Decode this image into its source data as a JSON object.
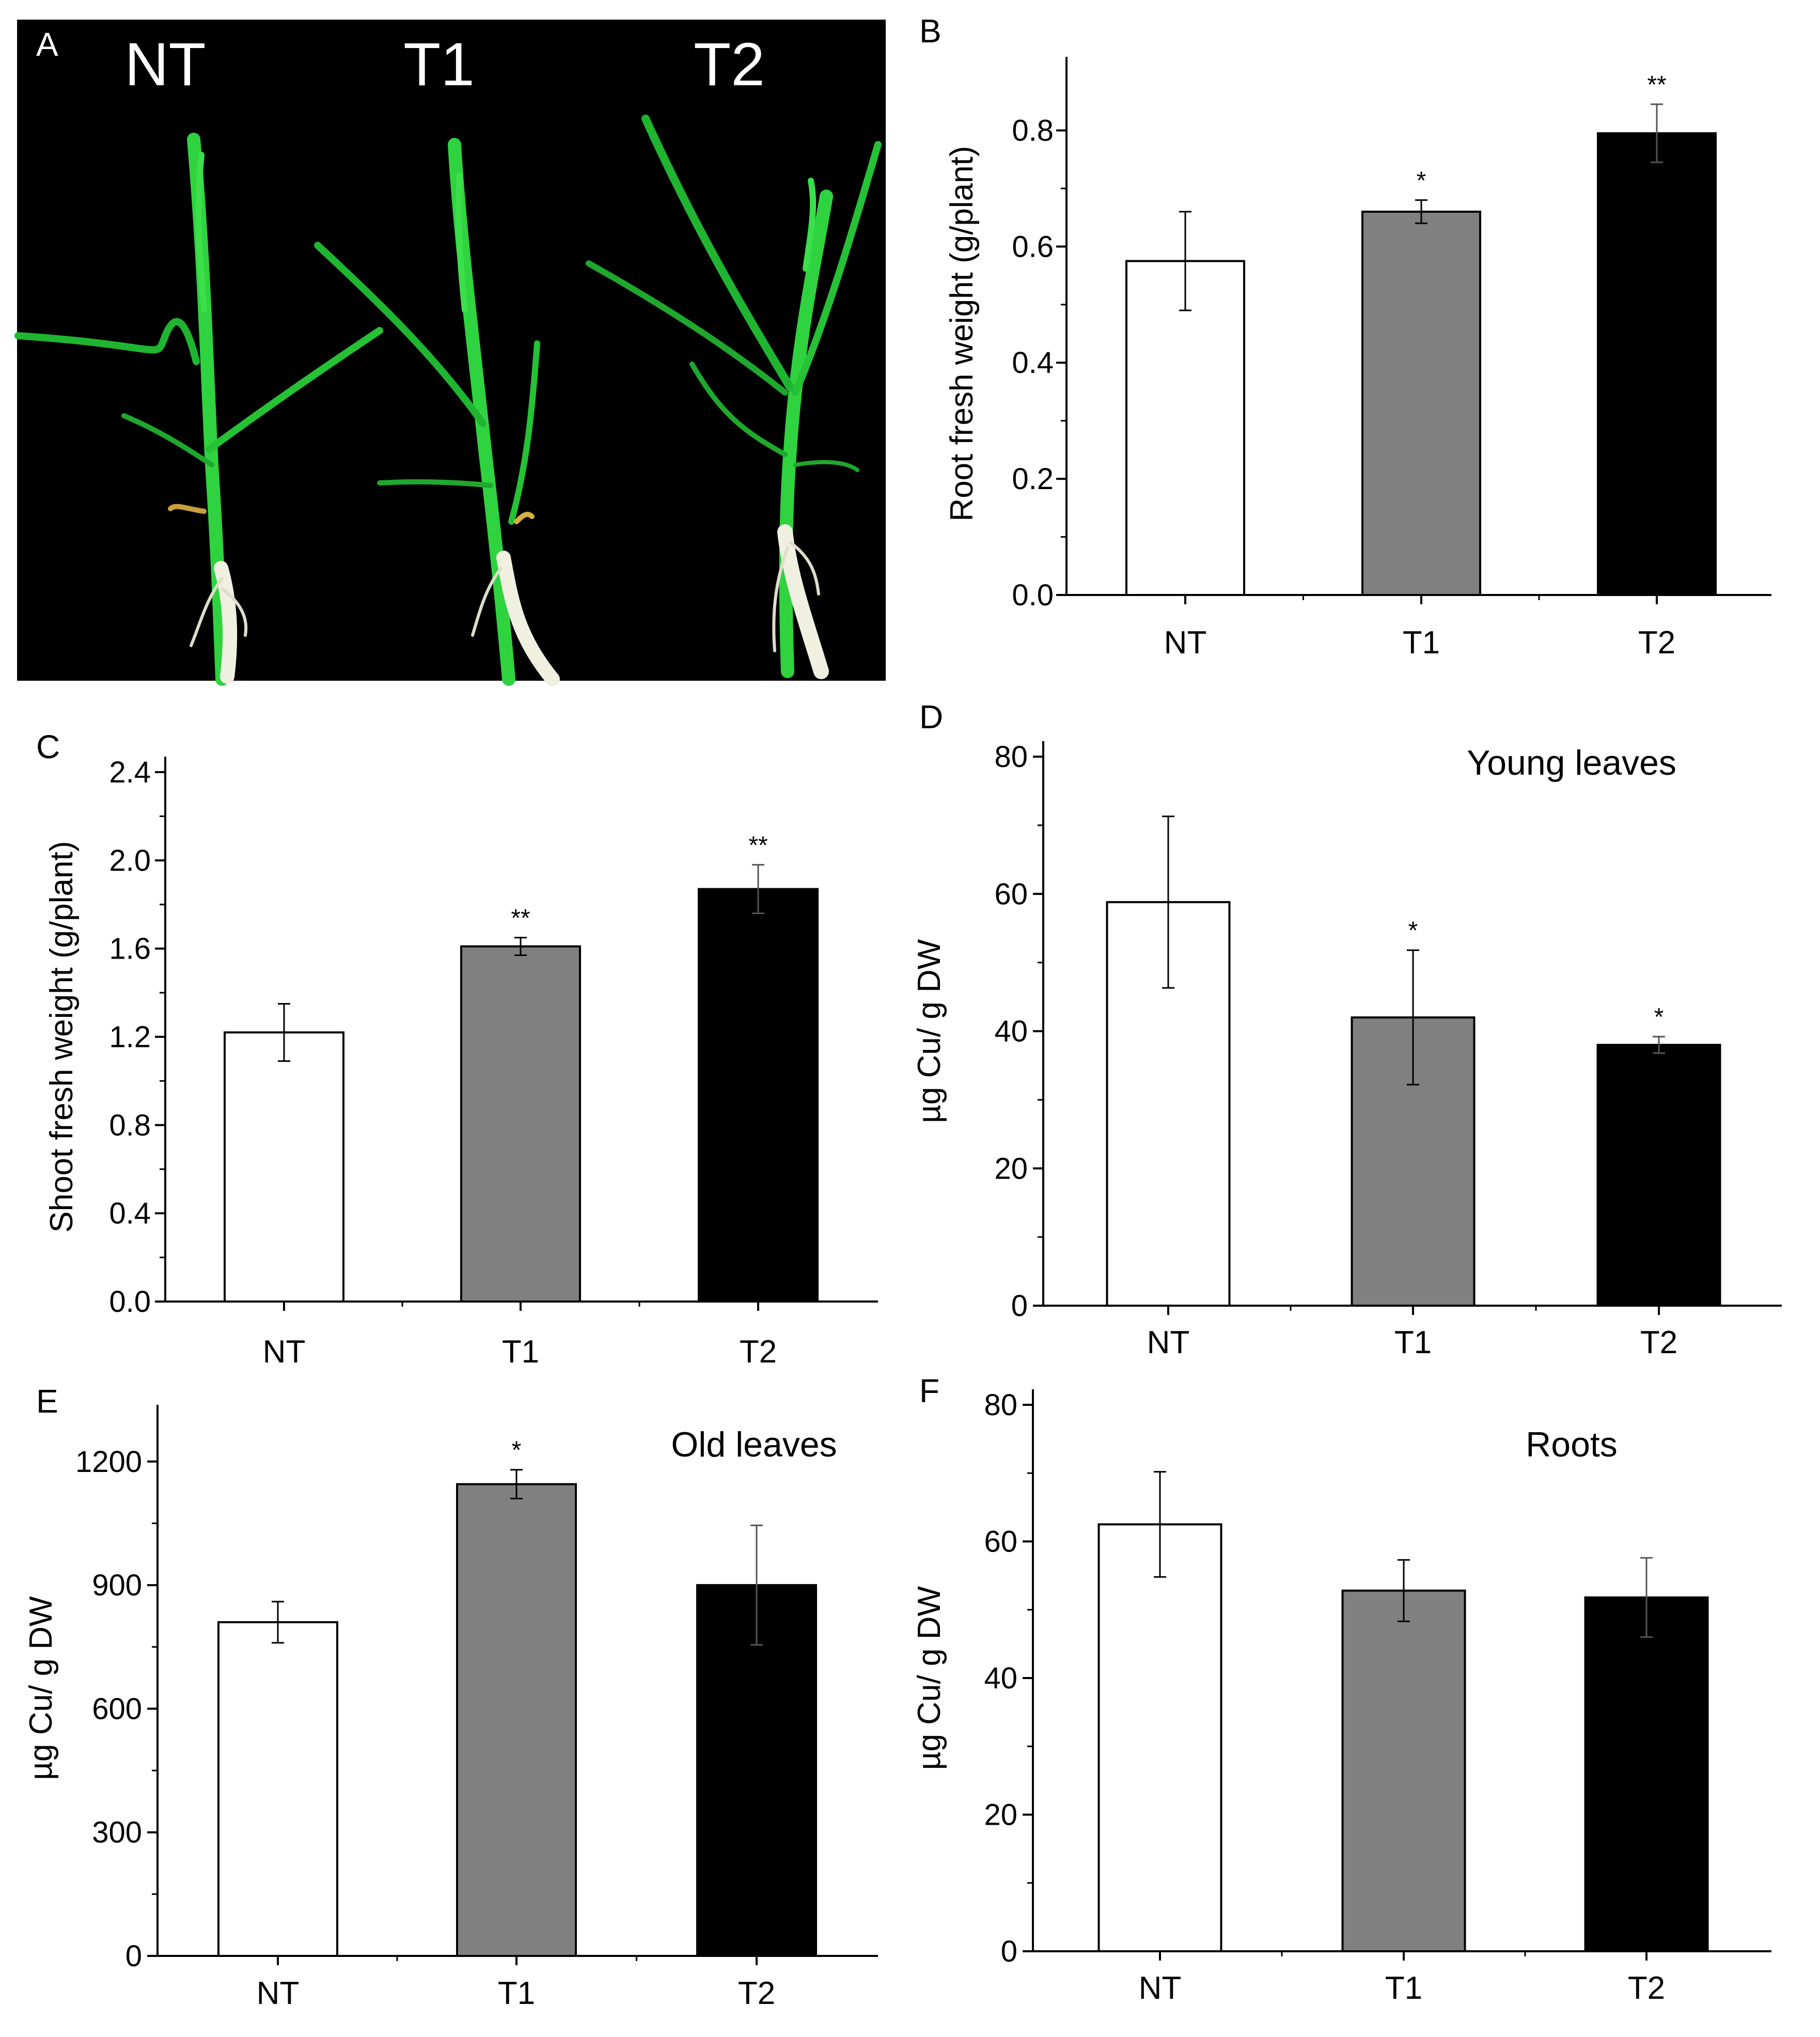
{
  "panels": {
    "A": {
      "letter": "A",
      "image_labels": [
        "NT",
        "T1",
        "T2"
      ],
      "background": "#000000",
      "leaf_color": "#22c83a",
      "root_color": "#eeeedd"
    }
  },
  "colors": {
    "NT": "#ffffff",
    "T1": "#808080",
    "T2": "#000000",
    "axis": "#000000"
  },
  "chart_data": [
    {
      "panel": "B",
      "type": "bar",
      "categories": [
        "NT",
        "T1",
        "T2"
      ],
      "values": [
        0.575,
        0.66,
        0.795
      ],
      "errors": [
        0.085,
        0.02,
        0.05
      ],
      "significance": [
        "",
        "*",
        "**"
      ],
      "ylabel": "Root fresh weight (g/plant)",
      "xlabel": "",
      "title": "",
      "ylim": [
        0,
        0.9
      ],
      "yticks": [
        0.0,
        0.2,
        0.4,
        0.6,
        0.8
      ],
      "ytick_labels": [
        "0.0",
        "0.2",
        "0.4",
        "0.6",
        "0.8"
      ]
    },
    {
      "panel": "C",
      "type": "bar",
      "categories": [
        "NT",
        "T1",
        "T2"
      ],
      "values": [
        1.22,
        1.61,
        1.87
      ],
      "errors": [
        0.13,
        0.04,
        0.11
      ],
      "significance": [
        "",
        "**",
        "**"
      ],
      "ylabel": "Shoot fresh weight (g/plant)",
      "xlabel": "",
      "title": "",
      "ylim": [
        0,
        2.4
      ],
      "yticks": [
        0.0,
        0.4,
        0.8,
        1.2,
        1.6,
        2.0,
        2.4
      ],
      "ytick_labels": [
        "0.0",
        "0.4",
        "0.8",
        "1.2",
        "1.6",
        "2.0",
        "2.4"
      ]
    },
    {
      "panel": "D",
      "type": "bar",
      "categories": [
        "NT",
        "T1",
        "T2"
      ],
      "values": [
        58.8,
        42.0,
        38.0
      ],
      "errors": [
        12.5,
        9.8,
        1.2
      ],
      "significance": [
        "",
        "*",
        "*"
      ],
      "ylabel": "µg Cu/ g DW",
      "xlabel": "",
      "title": "Young leaves",
      "ylim": [
        0,
        80
      ],
      "yticks": [
        0,
        20,
        40,
        60,
        80
      ],
      "ytick_labels": [
        "0",
        "20",
        "40",
        "60",
        "80"
      ]
    },
    {
      "panel": "E",
      "type": "bar",
      "categories": [
        "NT",
        "T1",
        "T2"
      ],
      "values": [
        810,
        1145,
        900
      ],
      "errors": [
        50,
        35,
        145
      ],
      "significance": [
        "",
        "*",
        ""
      ],
      "ylabel": "µg Cu/ g DW",
      "xlabel": "",
      "title": "Old leaves",
      "ylim": [
        0,
        1300
      ],
      "yticks": [
        0,
        300,
        600,
        900,
        1200
      ],
      "ytick_labels": [
        "0",
        "300",
        "600",
        "900",
        "1200"
      ]
    },
    {
      "panel": "F",
      "type": "bar",
      "categories": [
        "NT",
        "T1",
        "T2"
      ],
      "values": [
        62.5,
        52.8,
        51.8
      ],
      "errors": [
        7.7,
        4.5,
        5.8
      ],
      "significance": [
        "",
        "",
        ""
      ],
      "ylabel": "µg Cu/ g DW",
      "xlabel": "",
      "title": "Roots",
      "ylim": [
        0,
        80
      ],
      "yticks": [
        0,
        20,
        40,
        60,
        80
      ],
      "ytick_labels": [
        "0",
        "20",
        "40",
        "60",
        "80"
      ]
    }
  ]
}
